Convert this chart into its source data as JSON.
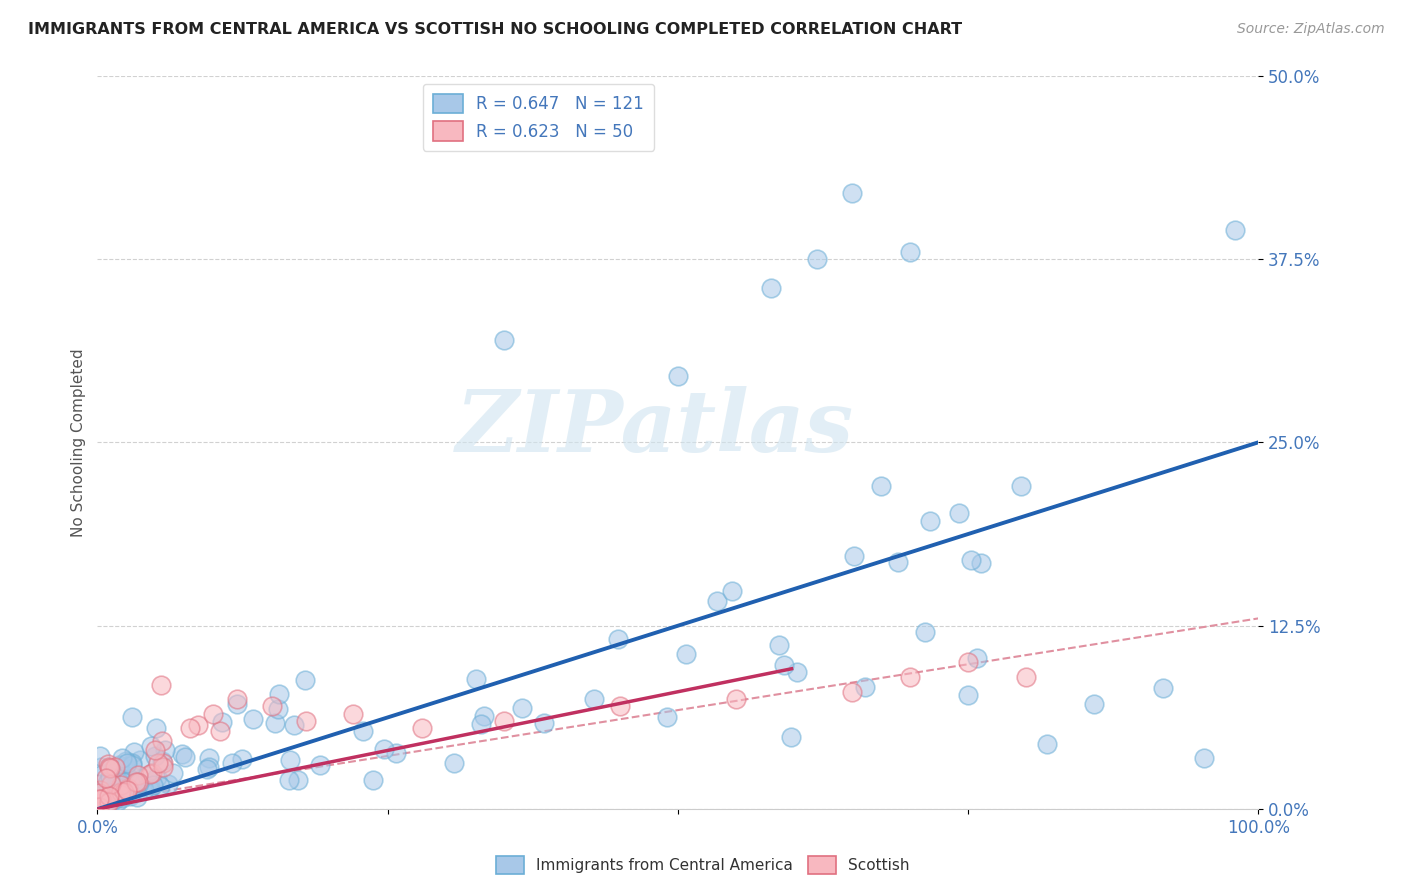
{
  "title": "IMMIGRANTS FROM CENTRAL AMERICA VS SCOTTISH NO SCHOOLING COMPLETED CORRELATION CHART",
  "source": "Source: ZipAtlas.com",
  "ylabel": "No Schooling Completed",
  "xlim": [
    0,
    1.0
  ],
  "ylim": [
    0,
    0.5
  ],
  "ytick_labels": [
    "0.0%",
    "12.5%",
    "25.0%",
    "37.5%",
    "50.0%"
  ],
  "ytick_vals": [
    0,
    0.125,
    0.25,
    0.375,
    0.5
  ],
  "watermark": "ZIPatlas",
  "blue_fill": "#a8c8e8",
  "blue_edge": "#6baed6",
  "blue_line": "#2060b0",
  "pink_fill": "#f8b8c0",
  "pink_edge": "#e07080",
  "pink_line": "#c03060",
  "pink_dash": "#e090a0",
  "bg_color": "#ffffff",
  "grid_color": "#cccccc",
  "axis_color": "#4477bb",
  "legend1_label": "R = 0.647   N = 121",
  "legend2_label": "R = 0.623   N = 50"
}
